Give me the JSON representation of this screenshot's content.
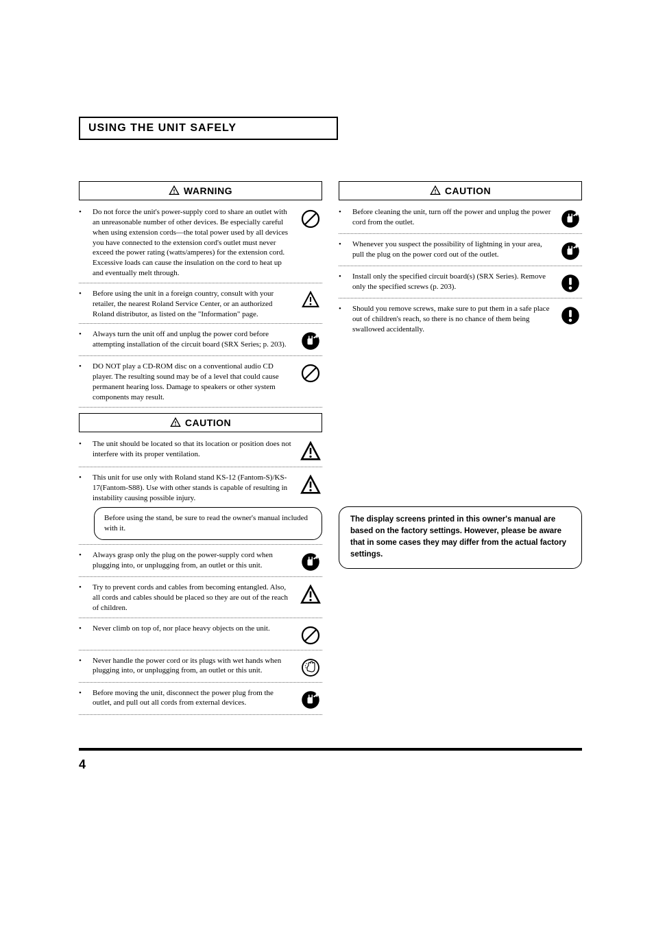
{
  "section_title": "USING THE UNIT SAFELY",
  "warning_label": "WARNING",
  "caution_label": "CAUTION",
  "left": {
    "warning_items": [
      {
        "text": "Do not force the unit's power-supply cord to share an outlet with an unreasonable number of other devices. Be especially careful when using extension cords—the total power used by all devices you have connected to the extension cord's outlet must never exceed the power rating (watts/amperes) for the extension cord. Excessive loads can cause the insulation on the cord to heat up and eventually melt through.",
        "icon": "prohibit"
      },
      {
        "text": "Before using the unit in a foreign country, consult with your retailer, the nearest Roland Service Center, or an authorized Roland distributor, as listed on the \"Information\" page.",
        "icon": "warn-tri"
      },
      {
        "text": "Always turn the unit off and unplug the power cord before attempting installation of the circuit board (SRX Series; p. 203).",
        "icon": "unplug"
      },
      {
        "text": "DO NOT play a CD-ROM disc on a conventional audio CD player. The resulting sound may be of a level that could cause permanent hearing loss. Damage to speakers or other system components may result.",
        "icon": "prohibit"
      }
    ],
    "caution_items": [
      {
        "text": "The unit should be located so that its location or position does not interfere with its proper ventilation.",
        "icon": "warn-tri-big"
      },
      {
        "text": "This unit for use only with Roland stand KS-12 (Fantom-S)/KS-17(Fantom-S88). Use with other stands is capable of resulting in instability causing possible injury.",
        "icon": "warn-tri-big",
        "callout": "Before using the stand, be sure to read the owner's manual included with it."
      },
      {
        "text": "Always grasp only the plug on the power-supply cord when plugging into, or unplugging from, an outlet or this unit.",
        "icon": "unplug"
      },
      {
        "text": "Try to prevent cords and cables from becoming entangled. Also, all cords and cables should be placed so they are out of the reach of children.",
        "icon": "warn-tri-big"
      },
      {
        "text": "Never climb on top of, nor place heavy objects on the unit.",
        "icon": "prohibit"
      },
      {
        "text": "Never handle the power cord or its plugs with wet hands when plugging into, or unplugging from, an outlet or this unit.",
        "icon": "wet-hand"
      },
      {
        "text": "Before moving the unit, disconnect the power plug from the outlet, and pull out all cords from external devices.",
        "icon": "unplug"
      }
    ]
  },
  "right": {
    "caution_items": [
      {
        "text": "Before cleaning the unit, turn off the power and unplug the power cord from the outlet.",
        "icon": "unplug"
      },
      {
        "text": "Whenever you suspect the possibility of lightning in your area, pull the plug on the power cord out of the outlet.",
        "icon": "unplug"
      },
      {
        "text": "Install only the specified circuit board(s) (SRX Series). Remove only the specified screws (p. 203).",
        "icon": "mandatory"
      },
      {
        "text": "Should you remove screws, make sure to put them in a safe place out of children's reach, so there is no chance of them being swallowed accidentally.",
        "icon": "mandatory"
      }
    ]
  },
  "note": "The display screens printed in this owner's manual are based on the factory settings. However, please be aware that in some cases they may differ from the actual factory settings.",
  "page_number": "4"
}
